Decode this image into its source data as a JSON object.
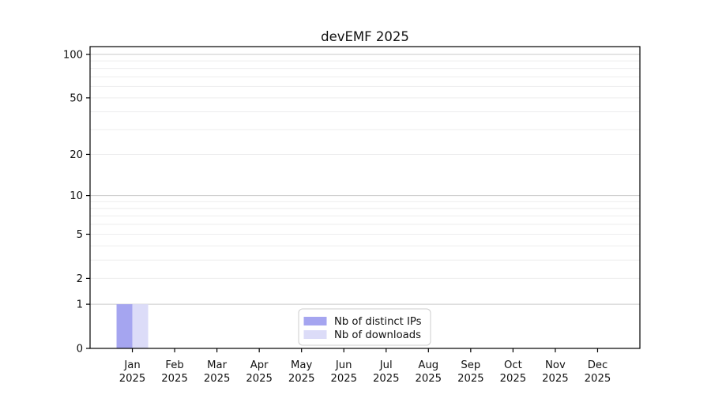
{
  "chart_data": {
    "type": "bar",
    "title": "devEMF 2025",
    "categories": [
      "Jan",
      "Feb",
      "Mar",
      "Apr",
      "May",
      "Jun",
      "Jul",
      "Aug",
      "Sep",
      "Oct",
      "Nov",
      "Dec"
    ],
    "category_year": "2025",
    "series": [
      {
        "name": "Nb of distinct IPs",
        "color": "#a5a5f0",
        "values": [
          1,
          0,
          0,
          0,
          0,
          0,
          0,
          0,
          0,
          0,
          0,
          0
        ]
      },
      {
        "name": "Nb of downloads",
        "color": "#dcdcf8",
        "values": [
          1,
          0,
          0,
          0,
          0,
          0,
          0,
          0,
          0,
          0,
          0,
          0
        ]
      }
    ],
    "xlabel": "",
    "ylabel": "",
    "y_scale": "log1p",
    "ylim": [
      0,
      113
    ],
    "y_axis_ticks": [
      0,
      1,
      2,
      5,
      10,
      20,
      50,
      100
    ],
    "y_gridlines_major": [
      1,
      10,
      100
    ],
    "y_gridlines_minor": [
      2,
      3,
      4,
      5,
      6,
      7,
      8,
      9,
      20,
      30,
      40,
      50,
      60,
      70,
      80,
      90
    ],
    "grid": true,
    "legend": {
      "position": "bottom-center-inside",
      "background": "#ffffff",
      "border_color": "#cccccc"
    },
    "colors": {
      "grid_major": "#c9c9c9",
      "grid_minor": "#ededee",
      "spine": "#000000",
      "text": "#111111",
      "background": "#ffffff"
    }
  }
}
